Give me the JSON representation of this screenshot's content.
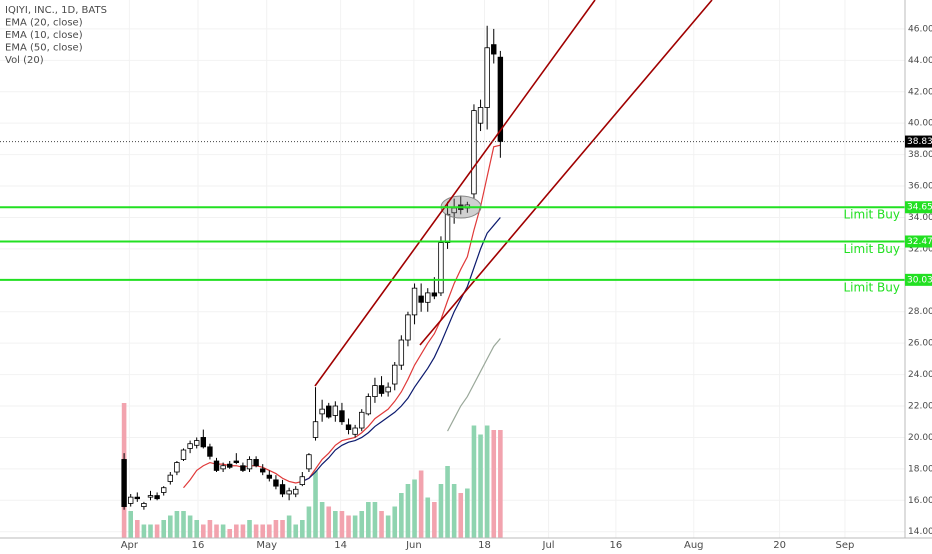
{
  "chart_data": {
    "type": "candlestick",
    "legend": [
      "IQIYI, INC., 1D, BATS",
      "EMA (20, close)",
      "EMA (10, close)",
      "EMA (50, close)",
      "Vol (20)"
    ],
    "up_color": "#ffffff",
    "down_color": "#000000",
    "vol_up_color": "#8fd4b0",
    "vol_down_color": "#f2a3ae",
    "open": [
      18.6,
      15.8,
      16.2,
      15.6,
      16.2,
      16.3,
      16.5,
      17.2,
      17.8,
      18.6,
      19.3,
      19.5,
      20.0,
      19.4,
      18.5,
      18.0,
      18.3,
      18.5,
      18.2,
      18.0,
      18.6,
      18.0,
      17.6,
      17.3,
      17.0,
      16.4,
      16.4,
      17.0,
      18.0,
      20.0,
      21.5,
      22.0,
      21.4,
      21.7,
      20.8,
      20.2,
      20.6,
      21.5,
      22.6,
      23.3,
      22.9,
      23.4,
      24.6,
      26.2,
      27.8,
      29.0,
      28.6,
      29.2,
      29.2,
      32.4,
      34.3,
      34.8,
      34.6,
      35.5,
      40.0,
      41.0,
      45.0,
      44.2
    ],
    "high": [
      19.0,
      16.4,
      16.5,
      15.9,
      16.6,
      16.5,
      16.9,
      17.8,
      18.5,
      19.3,
      19.8,
      20.0,
      20.5,
      19.6,
      18.7,
      18.4,
      18.5,
      19.0,
      18.4,
      18.8,
      18.8,
      18.3,
      17.9,
      17.6,
      17.3,
      16.8,
      16.9,
      17.8,
      19.0,
      23.2,
      22.4,
      22.2,
      22.3,
      22.2,
      21.2,
      20.8,
      21.8,
      22.8,
      23.8,
      23.9,
      23.5,
      24.8,
      26.5,
      28.0,
      29.8,
      29.8,
      29.5,
      30.2,
      32.8,
      35.0,
      35.2,
      35.4,
      35.0,
      41.2,
      41.5,
      46.2,
      46.0,
      44.6
    ],
    "low": [
      15.4,
      15.6,
      15.9,
      15.4,
      16.0,
      16.0,
      16.3,
      17.0,
      17.6,
      18.5,
      19.0,
      19.3,
      19.3,
      18.6,
      17.8,
      17.8,
      18.0,
      18.3,
      17.8,
      17.8,
      18.1,
      17.6,
      17.2,
      16.7,
      16.2,
      16.0,
      16.2,
      16.9,
      17.8,
      19.8,
      21.0,
      21.2,
      21.0,
      20.8,
      20.2,
      20.0,
      20.4,
      21.4,
      22.2,
      22.6,
      22.6,
      23.0,
      24.3,
      25.8,
      27.2,
      28.0,
      28.0,
      28.8,
      29.0,
      32.0,
      33.6,
      34.2,
      34.3,
      35.2,
      39.5,
      39.6,
      43.8,
      37.8
    ],
    "close": [
      15.6,
      16.2,
      16.1,
      15.8,
      16.3,
      16.1,
      16.8,
      17.6,
      18.4,
      19.2,
      19.6,
      19.8,
      19.4,
      18.8,
      17.9,
      18.2,
      18.1,
      18.4,
      17.9,
      18.6,
      18.2,
      17.8,
      17.4,
      16.9,
      16.4,
      16.6,
      16.7,
      17.5,
      18.9,
      21.0,
      21.8,
      21.3,
      22.0,
      21.0,
      20.5,
      20.6,
      21.6,
      22.6,
      23.3,
      22.8,
      23.2,
      24.6,
      26.2,
      27.8,
      29.5,
      28.6,
      29.2,
      29.0,
      32.4,
      34.2,
      34.6,
      34.5,
      34.8,
      40.8,
      41.0,
      44.8,
      44.4,
      38.83
    ],
    "volume": [
      30,
      6,
      4,
      3,
      3,
      3,
      4,
      5,
      6,
      6,
      5,
      4,
      3,
      4,
      3,
      3,
      2,
      3,
      3,
      4,
      3,
      3,
      3,
      4,
      4,
      5,
      3,
      4,
      7,
      15,
      8,
      7,
      6,
      6,
      5,
      5,
      6,
      8,
      8,
      6,
      5,
      7,
      10,
      12,
      13,
      15,
      9,
      8,
      12,
      16,
      12,
      10,
      11,
      25,
      23,
      25,
      24,
      24
    ],
    "series": [
      {
        "name": "EMA (10, close)",
        "color": "#e03a3a",
        "values": [
          null,
          null,
          null,
          null,
          null,
          null,
          null,
          null,
          null,
          16.8,
          17.3,
          17.9,
          18.2,
          18.4,
          18.3,
          18.3,
          18.2,
          18.2,
          18.1,
          18.2,
          18.2,
          18.1,
          17.9,
          17.7,
          17.4,
          17.2,
          17.1,
          17.2,
          17.4,
          18.0,
          18.6,
          19.0,
          19.5,
          19.8,
          19.9,
          20.0,
          20.3,
          20.7,
          21.2,
          21.5,
          21.8,
          22.3,
          22.9,
          23.7,
          24.6,
          25.3,
          26.0,
          26.6,
          27.5,
          28.7,
          29.8,
          30.7,
          31.5,
          33.2,
          34.7,
          36.6,
          38.5,
          38.6
        ]
      },
      {
        "name": "EMA (20, close)",
        "color": "#0c1a6e",
        "values": [
          null,
          null,
          null,
          null,
          null,
          null,
          null,
          null,
          null,
          null,
          null,
          null,
          null,
          null,
          null,
          null,
          null,
          null,
          null,
          null,
          null,
          null,
          null,
          null,
          null,
          null,
          null,
          17.2,
          17.4,
          17.8,
          18.3,
          18.7,
          19.2,
          19.5,
          19.7,
          19.8,
          20.0,
          20.3,
          20.7,
          21.0,
          21.3,
          21.6,
          22.0,
          22.5,
          23.2,
          23.8,
          24.4,
          25.1,
          26.0,
          27.0,
          28.0,
          28.8,
          29.6,
          30.8,
          32.0,
          33.0,
          33.5,
          34.0
        ]
      },
      {
        "name": "EMA (50, close)",
        "color": "#9aa89a",
        "values": [
          null,
          null,
          null,
          null,
          null,
          null,
          null,
          null,
          null,
          null,
          null,
          null,
          null,
          null,
          null,
          null,
          null,
          null,
          null,
          null,
          null,
          null,
          null,
          null,
          null,
          null,
          null,
          null,
          null,
          null,
          null,
          null,
          null,
          null,
          null,
          null,
          null,
          null,
          null,
          null,
          null,
          null,
          null,
          null,
          null,
          null,
          null,
          null,
          null,
          20.4,
          21.2,
          22.0,
          22.6,
          23.4,
          24.2,
          25.0,
          25.8,
          26.3
        ]
      }
    ],
    "last_price": 38.83,
    "levels": [
      {
        "value": 34.65,
        "text": "Limit Buy"
      },
      {
        "value": 32.47,
        "text": "Limit Buy"
      },
      {
        "value": 30.03,
        "text": "Limit Buy"
      }
    ],
    "level_color": "#22e022",
    "ylim": [
      13.6,
      47.84
    ],
    "yticks": [
      {
        "value": 14,
        "label": "14.00"
      },
      {
        "value": 16,
        "label": "16.00"
      },
      {
        "value": 18,
        "label": "18.00"
      },
      {
        "value": 20,
        "label": "20.00"
      },
      {
        "value": 22,
        "label": "22.00"
      },
      {
        "value": 24,
        "label": "24.00"
      },
      {
        "value": 26,
        "label": "26.00"
      },
      {
        "value": 28,
        "label": "28.00"
      },
      {
        "value": 30,
        "label": "30.00"
      },
      {
        "value": 32,
        "label": "32.00"
      },
      {
        "value": 34,
        "label": "34.00"
      },
      {
        "value": 36,
        "label": "36.00"
      },
      {
        "value": 38,
        "label": "38.00"
      },
      {
        "value": 40,
        "label": "40.00"
      },
      {
        "value": 42,
        "label": "42.00"
      },
      {
        "value": 44,
        "label": "44.00"
      },
      {
        "value": 46,
        "label": "46.00"
      }
    ],
    "xlim": [
      -18.8,
      118.3
    ],
    "xticks": [
      {
        "value": 0.8,
        "label": "Apr"
      },
      {
        "value": 11.2,
        "label": "16"
      },
      {
        "value": 21.6,
        "label": "May"
      },
      {
        "value": 32.8,
        "label": "14"
      },
      {
        "value": 43.9,
        "label": "Jun"
      },
      {
        "value": 54.6,
        "label": "18"
      },
      {
        "value": 64.3,
        "label": "Jul"
      },
      {
        "value": 74.5,
        "label": "16"
      },
      {
        "value": 86.3,
        "label": "Aug"
      },
      {
        "value": 99.3,
        "label": "20"
      },
      {
        "value": 109.2,
        "label": "Sep"
      }
    ],
    "grid": true
  }
}
